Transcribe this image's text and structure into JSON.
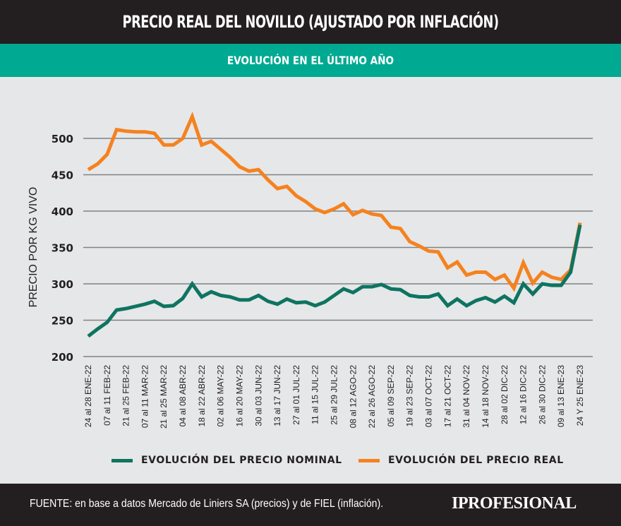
{
  "header": {
    "title": "PRECIO REAL DEL NOVILLO (AJUSTADO POR INFLACIÓN)",
    "subtitle": "EVOLUCIÓN EN EL ÚLTIMO AÑO"
  },
  "footer": {
    "source": "FUENTE: en base a datos Mercado de Liniers SA (precios) y de FIEL (inflación).",
    "brand": "IPROFESIONAL"
  },
  "colors": {
    "nominal": "#0e7461",
    "real": "#f5821f",
    "title_bg": "#231f20",
    "subtitle_bg": "#00a991",
    "chart_bg": "#e6e7e8",
    "grid": "#808285"
  },
  "chart_data": {
    "type": "line",
    "title": "PRECIO REAL DEL NOVILLO (AJUSTADO POR INFLACIÓN)",
    "subtitle": "EVOLUCIÓN EN EL ÚLTIMO AÑO",
    "xlabel": "",
    "ylabel": "PRECIO POR KG VIVO",
    "ylim": [
      200,
      530
    ],
    "yticks": [
      200,
      250,
      300,
      350,
      400,
      450,
      500
    ],
    "grid": true,
    "legend_position": "bottom",
    "x_tick_labels": [
      "24 al 28 ENE-22",
      "07 al 11 FEB-22",
      "21 al 25 FEB-22",
      "07 al 11 MAR-22",
      "21 al 25 MAR-22",
      "04 al 08  ABR-22",
      "18 al 22  ABR-22",
      "02 al 06 MAY-22",
      "16 al 20 MAY-22",
      "30 al 03 JUN-22",
      "13 al 17 JUN-22",
      "27 al 01 JUL-22",
      "11 al 15 JUL-22",
      "25 al 29 JUL-22",
      "08 al 12 AGO-22",
      "22 al 26 AGO-22",
      "05 al 09 SEP-22",
      "19 al 23 SEP-22",
      "03 al 07 OCT-22",
      "17 al 21 OCT-22",
      "31 al 04 NOV-22",
      "14 al 18 NOV-22",
      "28 al 02 DIC-22",
      "12 al 16 DIC-22",
      "26 al 30 DIC-22",
      "09 al 13 ENE-23",
      "24 Y 25 ENE-23"
    ],
    "x_points": 53,
    "tick_every": 2,
    "series": [
      {
        "name": "EVOLUCIÓN DEL PRECIO NOMINAL",
        "color": "#0e7461",
        "values": [
          228,
          238,
          247,
          264,
          266,
          269,
          272,
          276,
          269,
          270,
          280,
          300,
          282,
          289,
          284,
          282,
          278,
          278,
          284,
          276,
          272,
          279,
          274,
          275,
          270,
          275,
          284,
          293,
          288,
          296,
          296,
          299,
          293,
          292,
          284,
          282,
          282,
          286,
          270,
          279,
          270,
          277,
          281,
          275,
          283,
          274,
          300,
          286,
          300,
          298,
          298,
          316,
          381
        ]
      },
      {
        "name": "EVOLUCIÓN DEL PRECIO REAL",
        "color": "#f5821f",
        "values": [
          457,
          465,
          478,
          512,
          510,
          509,
          509,
          507,
          491,
          491,
          500,
          530,
          491,
          496,
          485,
          474,
          461,
          455,
          457,
          443,
          431,
          434,
          421,
          413,
          403,
          398,
          403,
          410,
          395,
          401,
          396,
          394,
          378,
          376,
          358,
          352,
          345,
          344,
          322,
          330,
          312,
          316,
          316,
          306,
          312,
          294,
          329,
          301,
          316,
          309,
          306,
          319,
          384
        ]
      }
    ]
  }
}
